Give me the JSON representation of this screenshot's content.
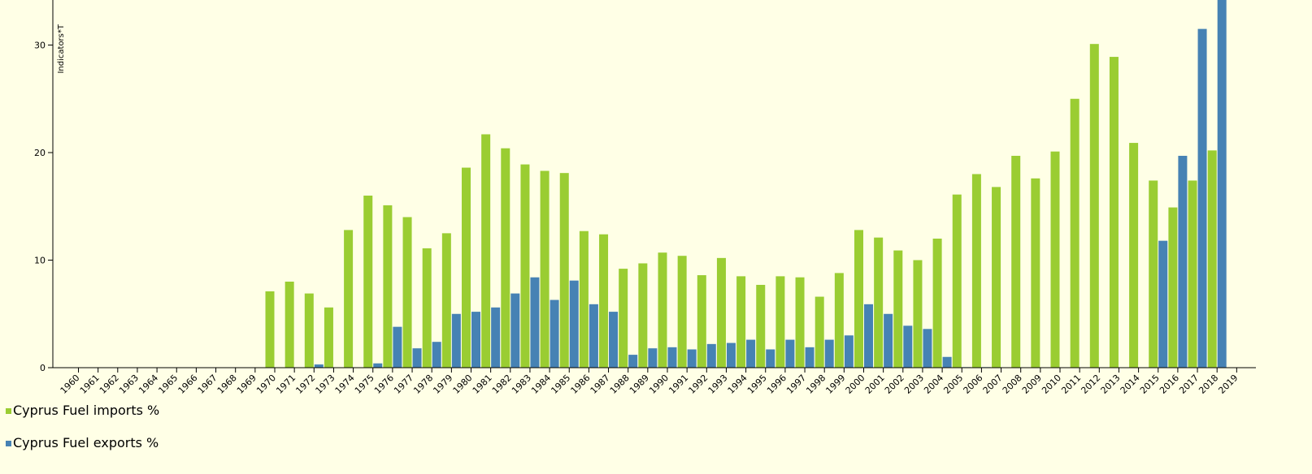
{
  "chart_data": {
    "type": "bar",
    "ylabel": "Indicators*T",
    "ylim": [
      0,
      33
    ],
    "yticks": [
      0,
      10,
      20,
      30
    ],
    "legend_position": "bottom-left",
    "categories": [
      "1960",
      "1961",
      "1962",
      "1963",
      "1964",
      "1965",
      "1966",
      "1967",
      "1968",
      "1969",
      "1970",
      "1971",
      "1972",
      "1973",
      "1974",
      "1975",
      "1976",
      "1977",
      "1978",
      "1979",
      "1980",
      "1981",
      "1982",
      "1983",
      "1984",
      "1985",
      "1986",
      "1987",
      "1988",
      "1989",
      "1990",
      "1991",
      "1992",
      "1993",
      "1994",
      "1995",
      "1996",
      "1997",
      "1998",
      "1999",
      "2000",
      "2001",
      "2002",
      "2003",
      "2004",
      "2005",
      "2006",
      "2007",
      "2008",
      "2009",
      "2010",
      "2011",
      "2012",
      "2013",
      "2014",
      "2015",
      "2016",
      "2017",
      "2018",
      "2019"
    ],
    "series": [
      {
        "name": "Cyprus Fuel imports %",
        "color": "#9acd32",
        "values": [
          null,
          null,
          null,
          null,
          null,
          null,
          null,
          null,
          null,
          null,
          7.1,
          8.0,
          6.9,
          5.6,
          12.8,
          16.0,
          15.1,
          14.0,
          11.1,
          12.5,
          18.6,
          21.7,
          20.4,
          18.9,
          18.3,
          18.1,
          12.7,
          12.4,
          9.2,
          9.7,
          10.7,
          10.4,
          8.6,
          10.2,
          8.5,
          7.7,
          8.5,
          8.4,
          6.6,
          8.8,
          12.8,
          12.1,
          10.9,
          10.0,
          12.0,
          16.1,
          18.0,
          16.8,
          19.7,
          17.6,
          20.1,
          25.0,
          30.1,
          28.9,
          20.9,
          17.4,
          14.9,
          17.4,
          20.2,
          null
        ]
      },
      {
        "name": "Cyprus Fuel exports %",
        "color": "#4682b4",
        "values": [
          null,
          null,
          null,
          null,
          null,
          null,
          null,
          null,
          null,
          null,
          null,
          null,
          0.3,
          null,
          null,
          0.4,
          3.8,
          1.8,
          2.4,
          5.0,
          5.2,
          5.6,
          6.9,
          8.4,
          6.3,
          8.1,
          5.9,
          5.2,
          1.2,
          1.8,
          1.9,
          1.7,
          2.2,
          2.3,
          2.6,
          1.7,
          2.6,
          1.9,
          2.6,
          3.0,
          5.9,
          5.0,
          3.9,
          3.6,
          1.0,
          0.05,
          0.05,
          null,
          null,
          null,
          null,
          null,
          null,
          null,
          null,
          11.8,
          19.7,
          31.5,
          36.0,
          null
        ]
      }
    ]
  }
}
